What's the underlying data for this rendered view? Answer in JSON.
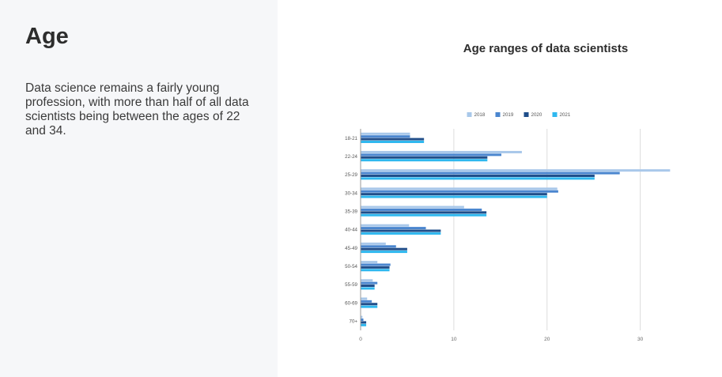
{
  "section": {
    "title": "Age",
    "body": "Data science remains a fairly young profession, with more than half of all data scientists being between the ages of 22 and 34."
  },
  "chart_data": {
    "type": "bar",
    "orientation": "horizontal",
    "title": "Age ranges of data scientists",
    "xlabel": "",
    "ylabel": "",
    "xlim": [
      0,
      33
    ],
    "x_ticks": [
      0,
      10,
      20,
      30
    ],
    "grid": true,
    "legend_position": "top",
    "categories": [
      "18-21",
      "22-24",
      "25-29",
      "30-34",
      "35-39",
      "40-44",
      "45-49",
      "50-54",
      "55-59",
      "60-69",
      "70+"
    ],
    "series": [
      {
        "name": "2018",
        "color": "#a9c8ea",
        "values": [
          5.3,
          17.3,
          33.2,
          21.1,
          11.1,
          5.2,
          2.7,
          1.8,
          1.3,
          0.7,
          0.2
        ]
      },
      {
        "name": "2019",
        "color": "#4a86cf",
        "values": [
          5.3,
          15.1,
          27.8,
          21.2,
          13.0,
          7.0,
          3.8,
          3.2,
          1.8,
          1.2,
          0.3
        ]
      },
      {
        "name": "2020",
        "color": "#1f4e8a",
        "values": [
          6.8,
          13.6,
          25.1,
          20.0,
          13.5,
          8.6,
          5.0,
          3.1,
          1.5,
          1.8,
          0.6
        ]
      },
      {
        "name": "2021",
        "color": "#2fb8ef",
        "values": [
          6.8,
          13.6,
          25.1,
          20.0,
          13.5,
          8.6,
          5.0,
          3.1,
          1.5,
          1.8,
          0.6
        ]
      }
    ]
  }
}
